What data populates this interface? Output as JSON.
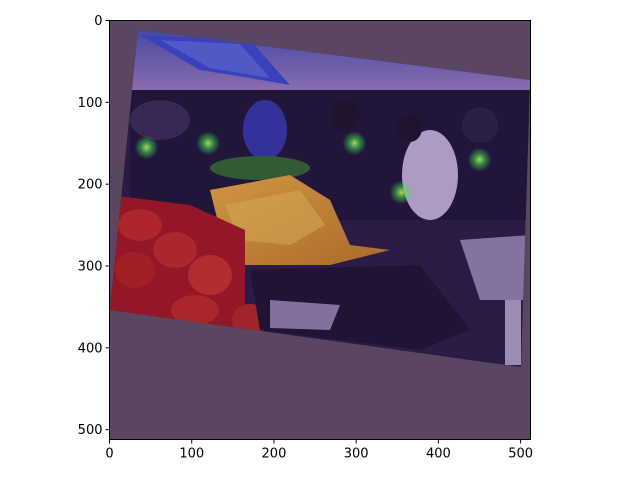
{
  "figure": {
    "background": "#ffffff",
    "overlay_tint": "#5a4660",
    "image_description_hidden": true
  },
  "axes": {
    "xlim": [
      0,
      512
    ],
    "ylim_display": [
      512,
      0
    ],
    "x_ticks": [
      {
        "value": 0,
        "label": "0"
      },
      {
        "value": 100,
        "label": "100"
      },
      {
        "value": 200,
        "label": "200"
      },
      {
        "value": 300,
        "label": "300"
      },
      {
        "value": 400,
        "label": "400"
      },
      {
        "value": 500,
        "label": "500"
      }
    ],
    "y_ticks": [
      {
        "value": 0,
        "label": "0"
      },
      {
        "value": 100,
        "label": "100"
      },
      {
        "value": 200,
        "label": "200"
      },
      {
        "value": 300,
        "label": "300"
      },
      {
        "value": 400,
        "label": "400"
      },
      {
        "value": 500,
        "label": "500"
      }
    ]
  },
  "heat_spots": [
    {
      "x": 45,
      "y": 155,
      "color": "#3fdc5a"
    },
    {
      "x": 120,
      "y": 150,
      "color": "#3fdc5a"
    },
    {
      "x": 298,
      "y": 150,
      "color": "#6fe05a"
    },
    {
      "x": 355,
      "y": 210,
      "color": "#3fdc5a"
    },
    {
      "x": 450,
      "y": 170,
      "color": "#8fe04a"
    }
  ]
}
